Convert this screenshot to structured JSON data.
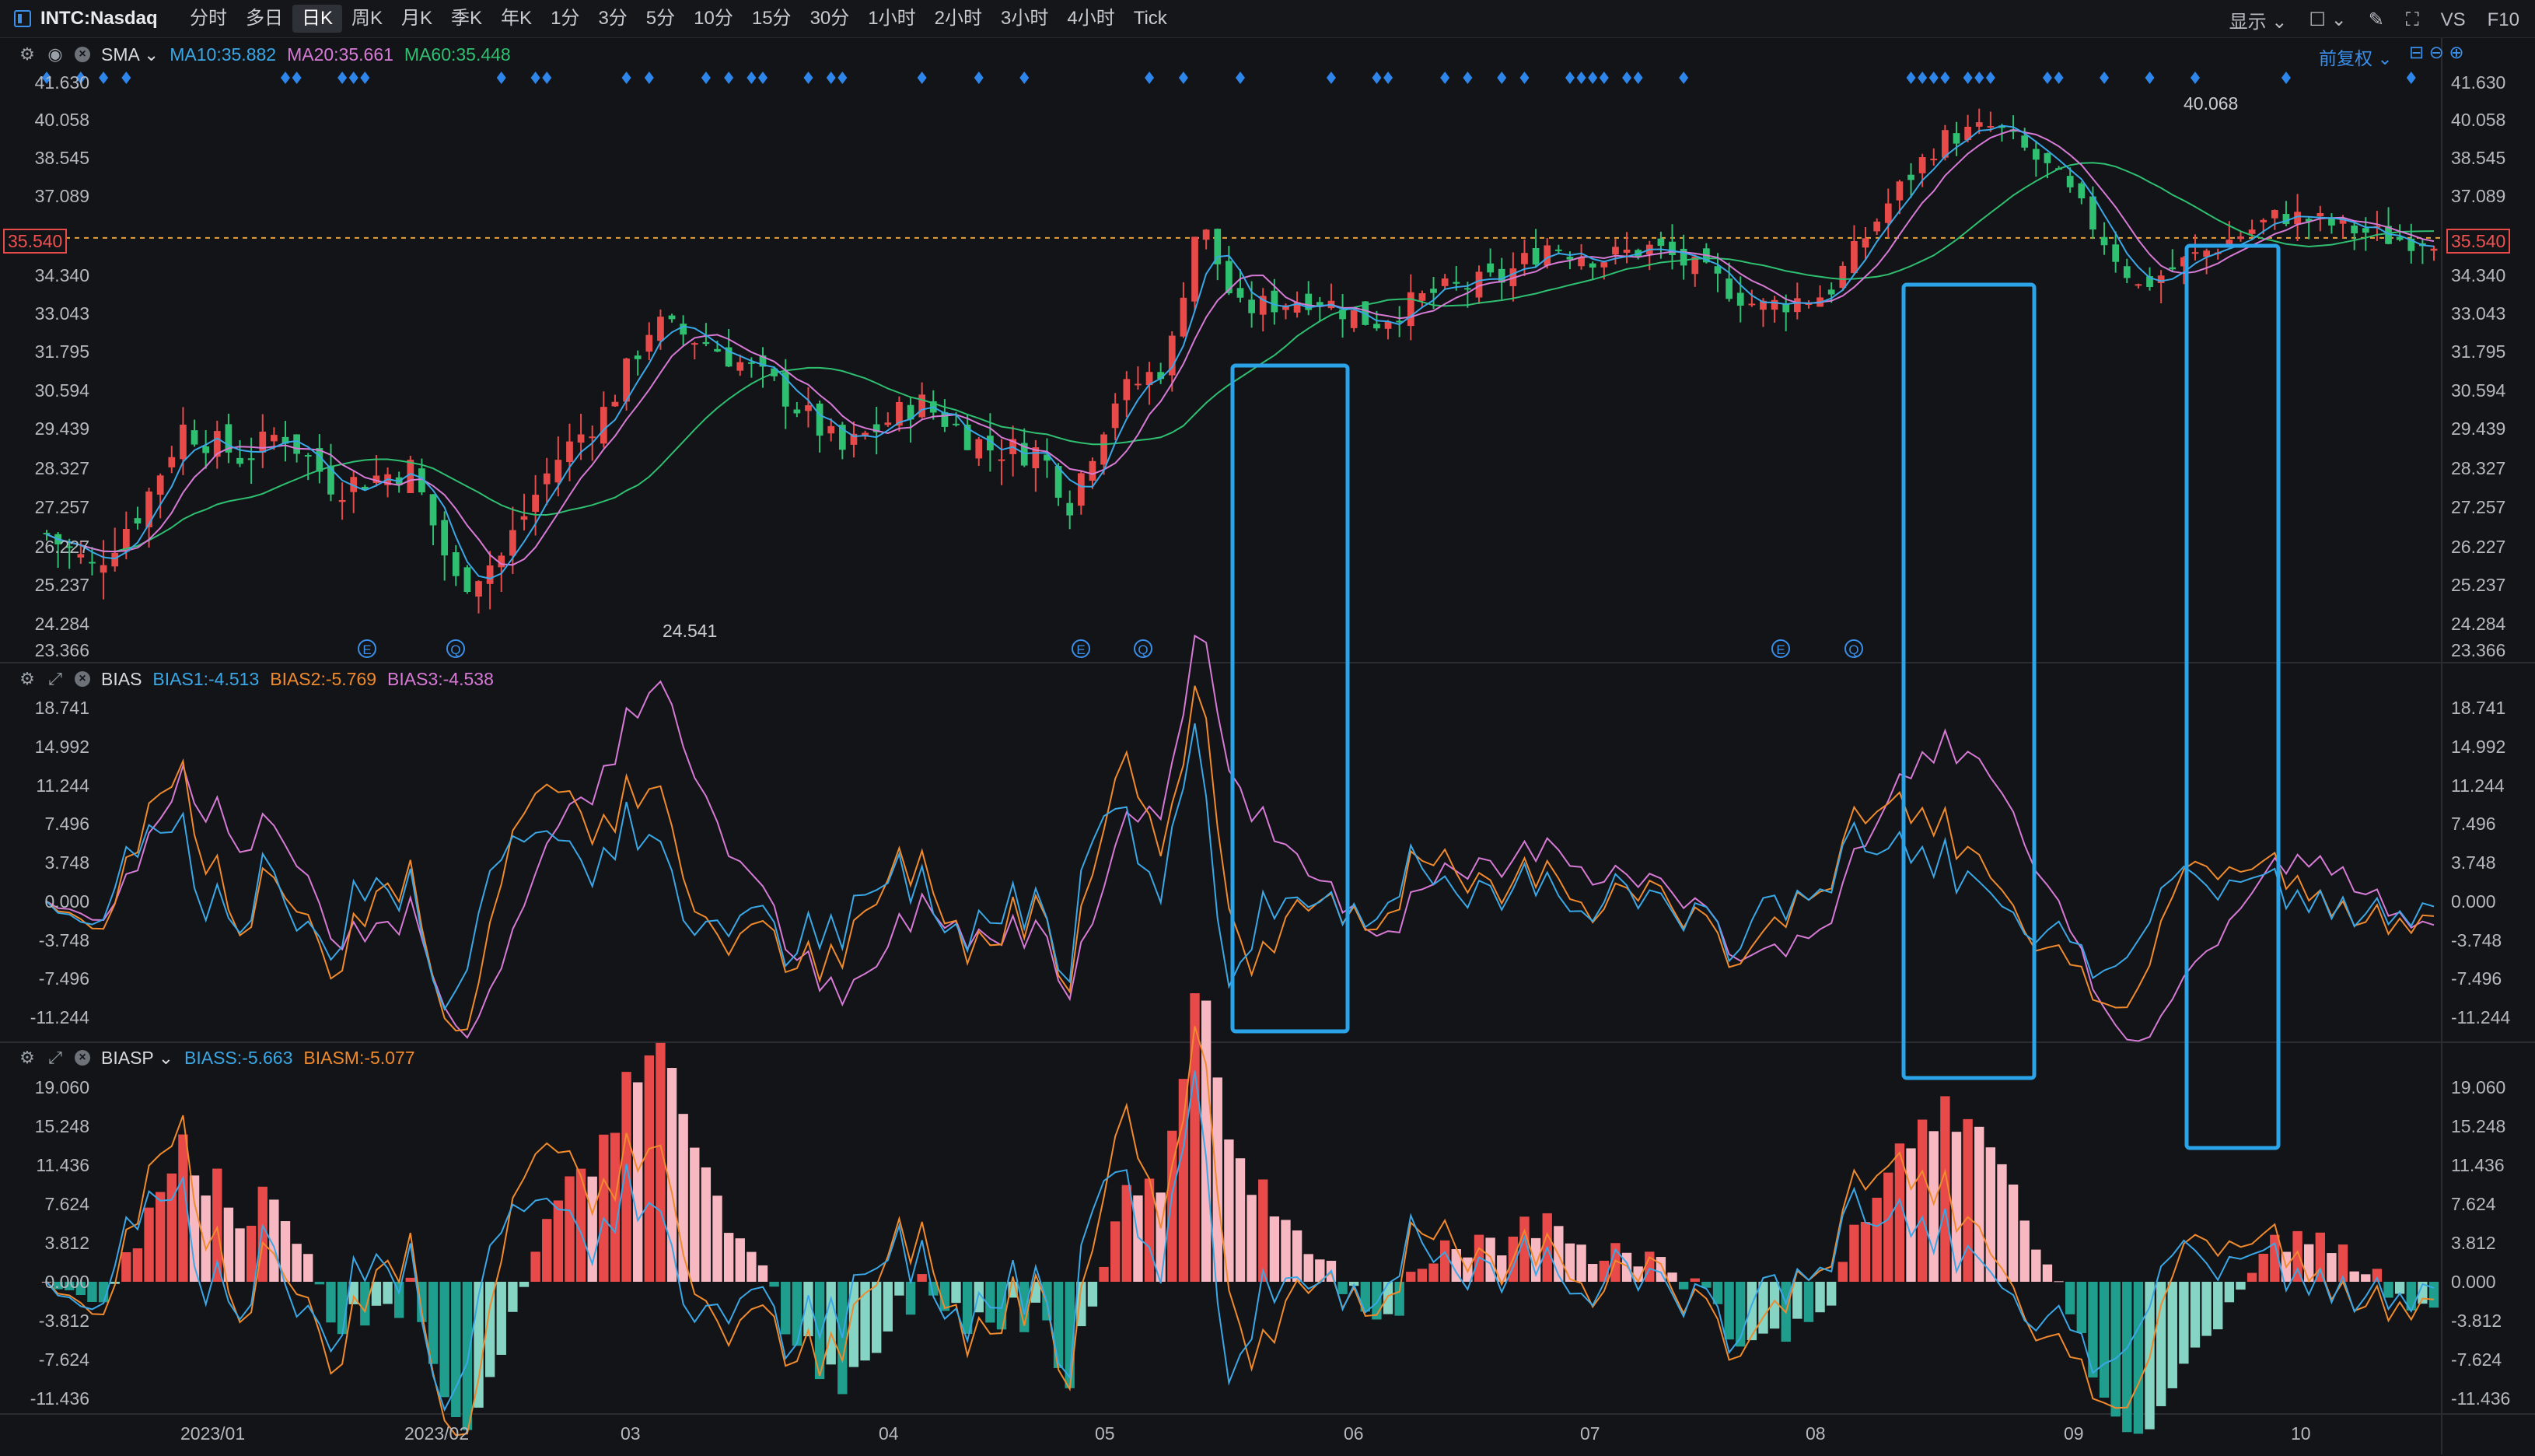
{
  "toolbar": {
    "symbol": "INTC:Nasdaq",
    "periods": [
      "分时",
      "多日",
      "日K",
      "周K",
      "月K",
      "季K",
      "年K",
      "1分",
      "3分",
      "5分",
      "10分",
      "15分",
      "30分",
      "1小时",
      "2小时",
      "3小时",
      "4小时",
      "Tick"
    ],
    "active_period": "日K",
    "display_label": "显示",
    "vs_label": "VS",
    "f10_label": "F10"
  },
  "main_panel": {
    "name": "SMA",
    "ma10_label": "MA10:35.882",
    "ma20_label": "MA20:35.661",
    "ma60_label": "MA60:35.448",
    "adjust_label": "前复权",
    "y_ticks": [
      "41.630",
      "40.058",
      "38.545",
      "37.089",
      "35.540",
      "34.340",
      "33.043",
      "31.795",
      "30.594",
      "29.439",
      "28.327",
      "27.257",
      "26.227",
      "25.237",
      "24.284",
      "23.366"
    ],
    "last_price": "35.540",
    "high_note": "40.068",
    "low_note": "24.541",
    "event_markers": [
      "E",
      "Q",
      "E",
      "Q",
      "E",
      "Q"
    ]
  },
  "bias_panel": {
    "name": "BIAS",
    "bias1_label": "BIAS1:-4.513",
    "bias2_label": "BIAS2:-5.769",
    "bias3_label": "BIAS3:-4.538",
    "y_ticks": [
      "18.741",
      "14.992",
      "11.244",
      "7.496",
      "3.748",
      "0.000",
      "-3.748",
      "-7.496",
      "-11.244"
    ]
  },
  "biasp_panel": {
    "name": "BIASP",
    "biass_label": "BIASS:-5.663",
    "biasm_label": "BIASM:-5.077",
    "y_ticks": [
      "19.060",
      "15.248",
      "11.436",
      "7.624",
      "3.812",
      "0.000",
      "-3.812",
      "-7.624",
      "-11.436"
    ]
  },
  "x_ticks": [
    "2023/01",
    "2023/02",
    "03",
    "04",
    "05",
    "06",
    "07",
    "08",
    "09",
    "10"
  ],
  "colors": {
    "up": "#e84a4a",
    "down": "#2fbf71",
    "ma10": "#3aa7e6",
    "ma20": "#d67ad6",
    "ma60": "#2fbf71",
    "bias1": "#3aa7e6",
    "bias2": "#f08a2c",
    "bias3": "#d67ad6",
    "highlight_box": "#2aa3e8"
  },
  "chart_data": [
    {
      "type": "candlestick",
      "title": "INTC:Nasdaq 日K",
      "price_range": [
        23.366,
        41.63
      ],
      "last_price": 35.54,
      "series": [
        {
          "name": "MA10",
          "last": 35.882
        },
        {
          "name": "MA20",
          "last": 35.661
        },
        {
          "name": "MA60",
          "last": 35.448
        }
      ],
      "annotations": {
        "period_high": 40.068,
        "period_low": 24.541
      }
    },
    {
      "type": "line",
      "title": "BIAS",
      "ylim": [
        -11.244,
        18.741
      ],
      "series": [
        {
          "name": "BIAS1",
          "last": -4.513
        },
        {
          "name": "BIAS2",
          "last": -5.769
        },
        {
          "name": "BIAS3",
          "last": -4.538
        }
      ]
    },
    {
      "type": "bar",
      "title": "BIASP",
      "ylim": [
        -11.436,
        19.06
      ],
      "series": [
        {
          "name": "BIASS",
          "last": -5.663
        },
        {
          "name": "BIASM",
          "last": -5.077
        }
      ]
    }
  ]
}
